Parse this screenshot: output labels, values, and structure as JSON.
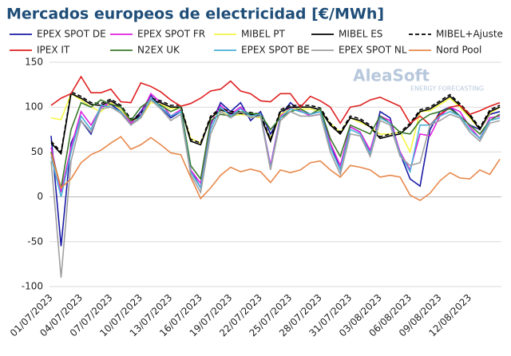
{
  "chart_data": {
    "type": "line",
    "title": "Mercados europeos de electricidad [€/MWh]",
    "annotations": [
      "AleaSoft",
      "ENERGY FORECASTING"
    ],
    "categories": [
      "01/07/2023",
      null,
      null,
      "04/07/2023",
      null,
      null,
      "07/07/2023",
      null,
      null,
      "10/07/2023",
      null,
      null,
      "13/07/2023",
      null,
      null,
      "16/07/2023",
      null,
      null,
      "19/07/2023",
      null,
      null,
      "22/07/2023",
      null,
      null,
      "25/07/2023",
      null,
      null,
      "28/07/2023",
      null,
      null,
      "31/07/2023",
      null,
      null,
      "03/08/2023",
      null,
      null,
      "06/08/2023",
      null,
      null,
      "09/08/2023",
      null,
      null,
      "12/08/2023",
      null,
      null,
      null
    ],
    "ylim": [
      -100,
      150
    ],
    "yticks": [
      -100,
      -50,
      0,
      50,
      100,
      150
    ],
    "grid": true,
    "series": [
      {
        "name": "EPEX SPOT DE",
        "color": "#1a1aa6",
        "values": [
          68,
          -55,
          60,
          85,
          70,
          100,
          103,
          95,
          82,
          95,
          113,
          100,
          88,
          95,
          30,
          10,
          80,
          105,
          95,
          105,
          85,
          95,
          70,
          90,
          105,
          95,
          92,
          95,
          60,
          30,
          78,
          72,
          48,
          95,
          88,
          48,
          20,
          12,
          75,
          95,
          100,
          90,
          80,
          75,
          92,
          95
        ]
      },
      {
        "name": "EPEX SPOT FR",
        "color": "#e020e0",
        "values": [
          55,
          5,
          55,
          95,
          80,
          100,
          105,
          97,
          82,
          92,
          115,
          105,
          90,
          97,
          30,
          15,
          82,
          102,
          92,
          100,
          90,
          92,
          35,
          90,
          100,
          96,
          90,
          92,
          60,
          35,
          78,
          72,
          52,
          90,
          85,
          50,
          30,
          70,
          68,
          90,
          100,
          95,
          78,
          65,
          88,
          90
        ]
      },
      {
        "name": "MIBEL PT",
        "color": "#f5f545",
        "values": [
          88,
          86,
          115,
          108,
          100,
          95,
          105,
          97,
          85,
          88,
          105,
          103,
          98,
          100,
          65,
          60,
          88,
          95,
          90,
          92,
          90,
          88,
          65,
          92,
          98,
          98,
          98,
          95,
          82,
          72,
          88,
          83,
          78,
          70,
          70,
          72,
          50,
          95,
          96,
          103,
          110,
          100,
          88,
          75,
          93,
          100
        ]
      },
      {
        "name": "MIBEL ES",
        "color": "#000000",
        "values": [
          60,
          48,
          115,
          110,
          103,
          102,
          107,
          100,
          85,
          90,
          108,
          105,
          100,
          100,
          62,
          58,
          88,
          97,
          93,
          93,
          92,
          90,
          62,
          95,
          100,
          100,
          100,
          97,
          80,
          70,
          88,
          85,
          78,
          65,
          68,
          70,
          80,
          95,
          98,
          105,
          112,
          102,
          90,
          75,
          95,
          100
        ]
      },
      {
        "name": "MIBEL+Ajuste",
        "color": "#000000",
        "dashed": true,
        "values": [
          62,
          50,
          117,
          112,
          105,
          104,
          109,
          102,
          87,
          92,
          110,
          107,
          102,
          102,
          64,
          60,
          90,
          99,
          95,
          95,
          94,
          92,
          64,
          97,
          102,
          102,
          102,
          99,
          82,
          72,
          90,
          87,
          80,
          67,
          70,
          72,
          82,
          97,
          100,
          107,
          114,
          104,
          92,
          77,
          97,
          102
        ]
      },
      {
        "name": "IPEX IT",
        "color": "#e02020",
        "values": [
          102,
          110,
          115,
          134,
          116,
          116,
          120,
          106,
          105,
          127,
          123,
          117,
          108,
          101,
          104,
          110,
          118,
          120,
          129,
          118,
          115,
          107,
          106,
          115,
          115,
          100,
          112,
          107,
          100,
          82,
          100,
          102,
          108,
          111,
          106,
          101,
          82,
          90,
          80,
          92,
          100,
          102,
          92,
          96,
          101,
          105
        ]
      },
      {
        "name": "N2EX UK",
        "color": "#3a7a2a",
        "values": [
          50,
          10,
          75,
          105,
          100,
          108,
          103,
          100,
          85,
          100,
          108,
          102,
          95,
          100,
          35,
          20,
          85,
          92,
          90,
          95,
          93,
          92,
          75,
          88,
          95,
          98,
          92,
          98,
          65,
          45,
          80,
          75,
          70,
          90,
          82,
          72,
          70,
          85,
          92,
          95,
          98,
          90,
          80,
          70,
          85,
          92
        ]
      },
      {
        "name": "EPEX SPOT BE",
        "color": "#4ab0d8",
        "values": [
          45,
          0,
          50,
          90,
          75,
          102,
          100,
          95,
          80,
          90,
          110,
          100,
          90,
          95,
          28,
          10,
          75,
          100,
          90,
          98,
          90,
          92,
          32,
          88,
          98,
          95,
          92,
          95,
          55,
          30,
          75,
          70,
          48,
          88,
          82,
          48,
          28,
          80,
          80,
          90,
          95,
          90,
          75,
          65,
          85,
          88
        ]
      },
      {
        "name": "EPEX SPOT NL",
        "color": "#a0a0a0",
        "values": [
          40,
          -90,
          40,
          85,
          72,
          98,
          100,
          93,
          80,
          88,
          108,
          98,
          85,
          92,
          25,
          5,
          70,
          95,
          88,
          95,
          88,
          90,
          30,
          85,
          95,
          90,
          90,
          92,
          50,
          25,
          70,
          68,
          45,
          85,
          80,
          45,
          35,
          38,
          80,
          85,
          92,
          88,
          72,
          62,
          82,
          85
        ]
      },
      {
        "name": "Nord Pool",
        "color": "#e8884a",
        "values": [
          48,
          10,
          20,
          38,
          47,
          52,
          60,
          67,
          53,
          58,
          66,
          58,
          49,
          47,
          22,
          -2,
          10,
          24,
          33,
          28,
          31,
          28,
          16,
          30,
          27,
          30,
          38,
          40,
          30,
          22,
          35,
          33,
          30,
          22,
          24,
          22,
          2,
          -4,
          4,
          18,
          27,
          21,
          20,
          30,
          25,
          42
        ]
      }
    ]
  }
}
